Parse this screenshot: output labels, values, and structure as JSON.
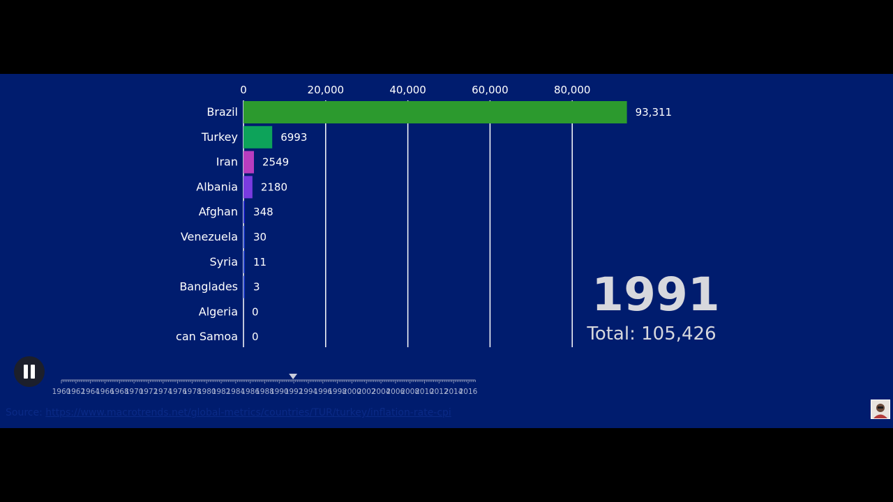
{
  "chart_data": {
    "type": "bar",
    "orientation": "horizontal",
    "categories": [
      "Brazil",
      "Turkey",
      "Iran",
      "Albania",
      "Afghan",
      "Venezuela",
      "Syria",
      "Banglades",
      "Algeria",
      "can Samoa"
    ],
    "values": [
      93311,
      6993,
      2549,
      2180,
      348,
      30,
      11,
      3,
      0,
      0
    ],
    "value_labels": [
      "93,311",
      "6993",
      "2549",
      "2180",
      "348",
      "30",
      "11",
      "3",
      "0",
      "0"
    ],
    "bar_colors": [
      "#2c9a2e",
      "#0da35a",
      "#b83dbf",
      "#7a3be0",
      "#1c24c9",
      "#1e3cc8",
      "#1e3cc8",
      "#1e3cc8",
      "#1e3cc8",
      "#1e3cc8"
    ],
    "x_ticks": [
      0,
      20000,
      40000,
      60000,
      80000
    ],
    "x_tick_labels": [
      "0",
      "20,000",
      "40,000",
      "60,000",
      "80,000"
    ],
    "xlim": [
      0,
      95000
    ],
    "grid": true,
    "axis_position": "top"
  },
  "year": "1991",
  "total": {
    "label": "Total:",
    "value": "105,426"
  },
  "timeline": {
    "labels": [
      "1960",
      "1962",
      "1964",
      "1966",
      "1968",
      "1970",
      "1972",
      "1974",
      "1976",
      "1978",
      "1980",
      "1982",
      "1984",
      "1986",
      "1988",
      "1990",
      "1992",
      "1994",
      "1996",
      "1998",
      "2000",
      "2002",
      "2004",
      "2006",
      "2008",
      "2010",
      "2012",
      "2014",
      "2016"
    ],
    "start_year": 1960,
    "end_year": 2017,
    "current_year": 1991.9
  },
  "controls": {
    "play_state_icon": "pause-icon"
  },
  "source": {
    "label": "Source:",
    "url": "https://www.macrotrends.net/global-metrics/countries/TUR/turkey/inflation-rate-cpi"
  },
  "colors": {
    "background": "#001c6e",
    "frame": "#000000",
    "text": "#ffffff"
  }
}
